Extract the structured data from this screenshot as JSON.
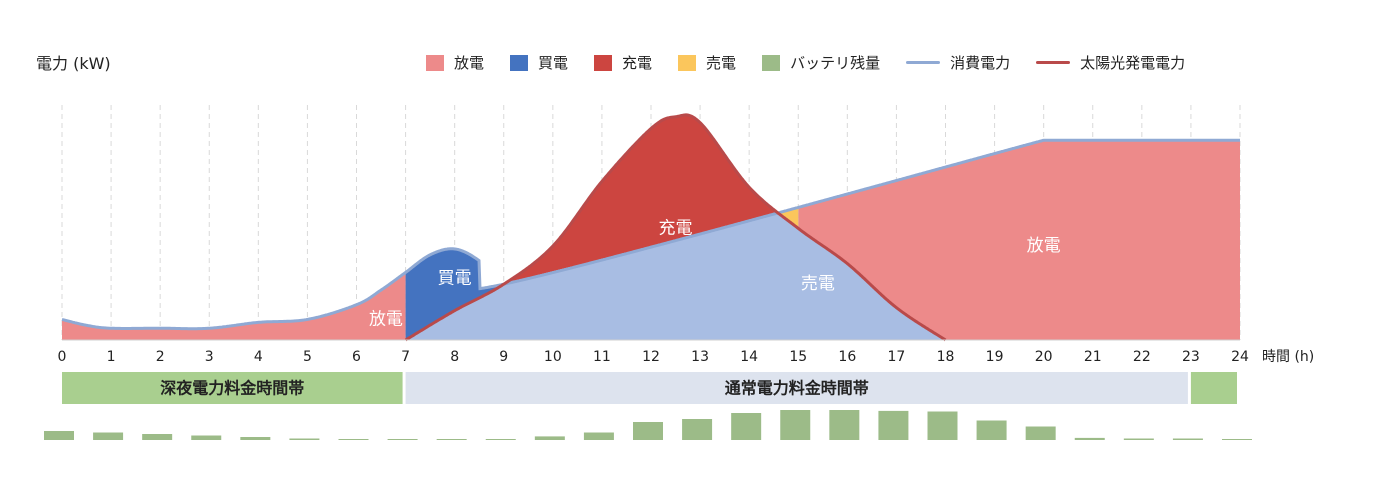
{
  "chart_data": {
    "type": "area",
    "ylabel": "電力 (kW)",
    "xlabel": "時間 (h)",
    "x_ticks": [
      0,
      1,
      2,
      3,
      4,
      5,
      6,
      7,
      8,
      9,
      10,
      11,
      12,
      13,
      14,
      15,
      16,
      17,
      18,
      19,
      20,
      21,
      22,
      23,
      24
    ],
    "xlim": [
      0,
      24
    ],
    "grid_vertical": true,
    "legend_position": "top",
    "legend": [
      {
        "name": "放電",
        "kind": "area",
        "color": "#ed8a8a"
      },
      {
        "name": "買電",
        "kind": "area",
        "color": "#4473c0"
      },
      {
        "name": "充電",
        "kind": "area",
        "color": "#cc4540"
      },
      {
        "name": "売電",
        "kind": "area",
        "color": "#fbc65c"
      },
      {
        "name": "バッテリ残量",
        "kind": "area",
        "color": "#9cbb88"
      },
      {
        "name": "消費電力",
        "kind": "line",
        "color": "#8fa9d4"
      },
      {
        "name": "太陽光発電電力",
        "kind": "line",
        "color": "#b94a4a"
      }
    ],
    "consumption": {
      "x": [
        0,
        0.5,
        1,
        2,
        3,
        4,
        5,
        6,
        6.5,
        7,
        7.5,
        8,
        8.5,
        9,
        20
      ],
      "y": [
        0.35,
        0.25,
        0.2,
        0.2,
        0.2,
        0.3,
        0.35,
        0.6,
        0.85,
        1.15,
        1.45,
        1.55,
        1.35,
        0.95,
        3.4
      ]
    },
    "solar": {
      "x": [
        7,
        8,
        9,
        10,
        11,
        12,
        12.5,
        13,
        14,
        15,
        16,
        17,
        18
      ],
      "y": [
        0,
        0.5,
        0.95,
        1.6,
        2.7,
        3.6,
        3.8,
        3.7,
        2.6,
        1.9,
        1.3,
        0.55,
        0
      ]
    },
    "annotations": [
      {
        "text": "放電",
        "x": 6.6,
        "y": 0.35
      },
      {
        "text": "買電",
        "x": 8.0,
        "y": 1.05
      },
      {
        "text": "充電",
        "x": 12.5,
        "y": 1.9
      },
      {
        "text": "売電",
        "x": 15.4,
        "y": 0.95
      },
      {
        "text": "放電",
        "x": 20.0,
        "y": 1.6
      }
    ],
    "rate_bands": [
      {
        "label": "深夜電力料金時間帯",
        "start": 0,
        "end": 7,
        "color": "#a9cf8f"
      },
      {
        "label": "通常電力料金時間帯",
        "start": 7,
        "end": 23,
        "color": "#dde3ee"
      },
      {
        "label": "",
        "start": 23,
        "end": 24,
        "color": "#a9cf8f"
      }
    ],
    "battery_level": {
      "x": [
        0,
        1,
        2,
        3,
        4,
        5,
        6,
        7,
        8,
        9,
        10,
        11,
        12,
        13,
        14,
        15,
        16,
        17,
        18,
        19,
        20,
        21,
        22,
        23,
        24
      ],
      "values": [
        0.3,
        0.25,
        0.2,
        0.15,
        0.1,
        0.05,
        0.03,
        0.03,
        0.03,
        0.03,
        0.12,
        0.25,
        0.6,
        0.7,
        0.9,
        1.0,
        1.0,
        0.97,
        0.95,
        0.65,
        0.45,
        0.07,
        0.05,
        0.05,
        0.03
      ],
      "color": "#9cbb88"
    }
  }
}
